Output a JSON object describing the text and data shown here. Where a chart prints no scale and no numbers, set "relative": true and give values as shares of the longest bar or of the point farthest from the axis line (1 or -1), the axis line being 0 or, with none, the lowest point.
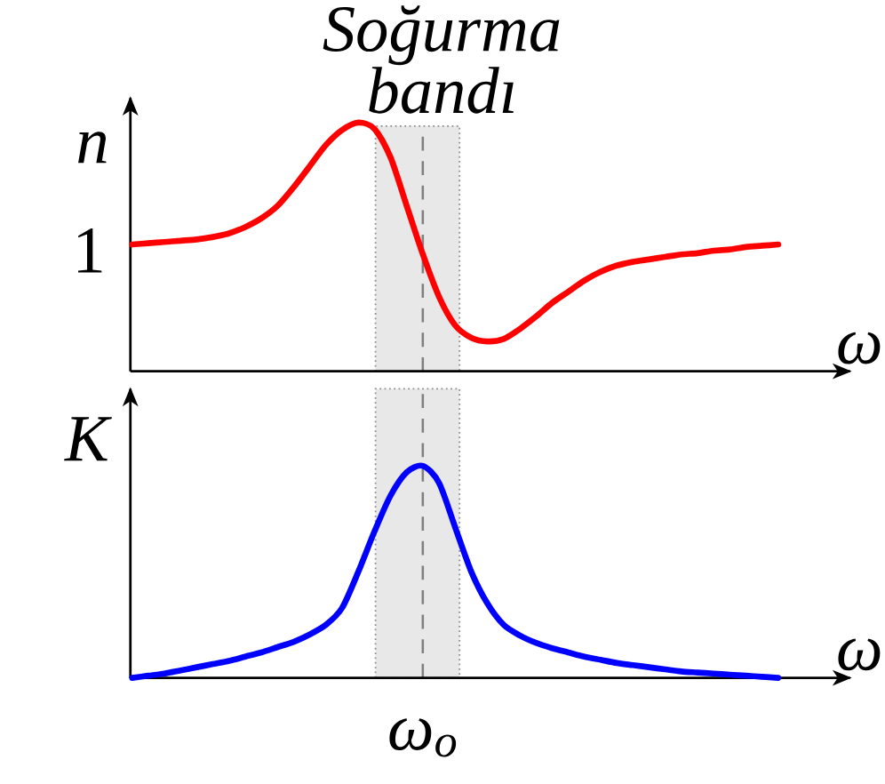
{
  "chart_data": [
    {
      "type": "line",
      "relative": true,
      "ylabel": "n",
      "xlabel": "ω",
      "categories": [
        null,
        null,
        null,
        null,
        null,
        null,
        null,
        null,
        null,
        null,
        null,
        null,
        null,
        null,
        null,
        null,
        null,
        null,
        null,
        null,
        null,
        null,
        null,
        null,
        null,
        null,
        null,
        null,
        null,
        null,
        null,
        null,
        null,
        null,
        null,
        null,
        null,
        null,
        null,
        null,
        null
      ],
      "series": [
        {
          "color": "#ff0000",
          "values": [
            0.51,
            0.515,
            0.52,
            0.525,
            0.53,
            0.54,
            0.555,
            0.58,
            0.615,
            0.665,
            0.74,
            0.825,
            0.91,
            0.97,
            1.0,
            0.975,
            0.86,
            0.665,
            0.47,
            0.3,
            0.185,
            0.135,
            0.12,
            0.13,
            0.17,
            0.22,
            0.275,
            0.32,
            0.365,
            0.4,
            0.425,
            0.44,
            0.45,
            0.46,
            0.47,
            0.475,
            0.485,
            0.49,
            0.5,
            0.505,
            0.51
          ]
        }
      ],
      "annotations": [
        "Soğurma bandı",
        "1"
      ]
    },
    {
      "type": "line",
      "relative": true,
      "ylabel": "K",
      "xlabel": "ω",
      "categories": [
        null,
        null,
        null,
        null,
        null,
        null,
        null,
        null,
        null,
        null,
        null,
        null,
        null,
        null,
        null,
        null,
        null,
        null,
        null,
        null,
        null,
        null,
        null,
        null,
        null,
        null,
        null,
        null,
        null,
        null,
        null,
        null,
        null,
        null,
        null,
        null,
        null,
        null,
        null,
        null,
        null
      ],
      "series": [
        {
          "color": "#0000ff",
          "values": [
            0,
            0.01,
            0.02,
            0.035,
            0.05,
            0.065,
            0.08,
            0.1,
            0.12,
            0.145,
            0.17,
            0.205,
            0.25,
            0.33,
            0.5,
            0.69,
            0.86,
            0.97,
            1.0,
            0.92,
            0.71,
            0.5,
            0.35,
            0.25,
            0.2,
            0.165,
            0.14,
            0.12,
            0.1,
            0.085,
            0.07,
            0.06,
            0.05,
            0.04,
            0.03,
            0.025,
            0.02,
            0.015,
            0.01,
            0.005,
            0
          ]
        }
      ],
      "annotations": [
        "ω$_{o}$"
      ]
    }
  ]
}
